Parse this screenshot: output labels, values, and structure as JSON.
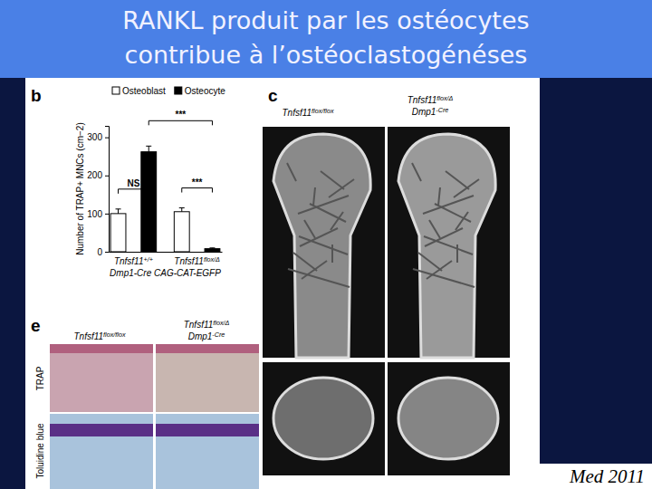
{
  "slide": {
    "title": [
      "RANKL produit par les ostéocytes",
      "contribue à l’ostéoclastogénéses"
    ],
    "source": "Med 2011",
    "panel_b": {
      "letter": "b"
    },
    "panel_c": {
      "letter": "c",
      "labels": [
        [
          "Tnfsf11flox/flox"
        ],
        [
          "Tnfsf11flox/Δ",
          "Dmp1-Cre"
        ]
      ]
    },
    "panel_e": {
      "letter": "e",
      "columns": [
        [
          "Tnfsf11flox/flox"
        ],
        [
          "Tnfsf11flox/Δ",
          "Dmp1-Cre"
        ]
      ],
      "rows": [
        "TRAP",
        "Toluidine blue"
      ]
    }
  },
  "chart_data": {
    "type": "bar",
    "categories": [
      "Tnfsf11+/+",
      "Tnfsf11flox/Δ"
    ],
    "xlabel": "Dmp1-Cre CAG-CAT-EGFP",
    "ylabel": "Number of TRAP+ MNCs (cm−2)",
    "series": [
      {
        "name": "Osteoblast",
        "color": "#ffffff",
        "values": [
          100,
          105
        ],
        "errors": [
          12,
          10
        ]
      },
      {
        "name": "Osteocyte",
        "color": "#000000",
        "values": [
          262,
          8
        ],
        "errors": [
          15,
          2
        ]
      }
    ],
    "ylim": [
      0,
      330
    ],
    "yticks": [
      0,
      100,
      200,
      300
    ],
    "legend": "top",
    "annotations": [
      {
        "text": "NS",
        "from": [
          0,
          0
        ],
        "to": [
          0,
          1
        ]
      },
      {
        "text": "***",
        "from": [
          0,
          1
        ],
        "to": [
          1,
          1
        ]
      },
      {
        "text": "***",
        "from": [
          1,
          0
        ],
        "to": [
          1,
          1
        ]
      }
    ]
  }
}
